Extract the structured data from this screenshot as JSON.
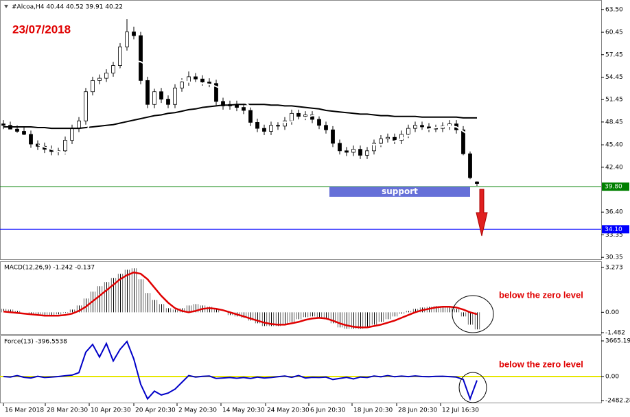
{
  "header": "#Alcoa,H4 40.44 40.52 39.91 40.22",
  "chart_data": [
    {
      "type": "candlestick",
      "annotation": "23/07/2018",
      "xlim": [
        -0.5,
        87.1
      ],
      "ylim": [
        30.0,
        64.4
      ],
      "yticks": [
        {
          "value": 63.5,
          "label": "63.50"
        },
        60.45,
        57.45,
        54.45,
        51.45,
        48.45,
        {
          "value": 45.4,
          "label": "45.40"
        },
        {
          "value": 42.4,
          "label": "42.40"
        },
        {
          "value": 36.4,
          "label": "36.40"
        },
        33.35,
        30.35
      ],
      "open": [
        48.2,
        48.0,
        47.5,
        47.2,
        46.8,
        45.5,
        45.2,
        44.8,
        44.5,
        44.6,
        46.0,
        47.6,
        48.6,
        52.5,
        54.0,
        54.3,
        55.0,
        56.0,
        58.5,
        60.5,
        60.0,
        54.0,
        50.8,
        52.5,
        51.5,
        50.8,
        53.0,
        53.8,
        54.5,
        54.2,
        53.8,
        53.6,
        51.2,
        50.6,
        50.8,
        50.4,
        50.0,
        48.4,
        47.6,
        47.2,
        48.0,
        47.9,
        48.6,
        49.6,
        49.2,
        49.4,
        48.8,
        48.0,
        47.4,
        45.6,
        44.6,
        44.4,
        44.8,
        44.0,
        44.6,
        45.6,
        46.2,
        46.4,
        46.0,
        46.8,
        47.6,
        48.0,
        47.8,
        47.6,
        47.6,
        47.9,
        48.2,
        47.4,
        44.2,
        40.44
      ],
      "high": [
        48.7,
        48.5,
        48.0,
        47.7,
        47.3,
        46.0,
        45.7,
        45.3,
        45.0,
        46.5,
        48.1,
        49.1,
        53.0,
        54.5,
        54.8,
        55.5,
        56.5,
        59.0,
        62.2,
        61.2,
        60.5,
        54.5,
        52.9,
        53.0,
        52.0,
        53.5,
        54.3,
        55.2,
        55.0,
        54.7,
        54.3,
        54.1,
        51.7,
        51.3,
        51.3,
        50.9,
        50.5,
        48.9,
        48.1,
        48.5,
        48.5,
        49.1,
        50.1,
        50.1,
        49.9,
        49.9,
        49.3,
        48.5,
        47.9,
        46.1,
        45.1,
        45.3,
        45.3,
        45.1,
        46.1,
        46.7,
        46.9,
        46.9,
        47.3,
        48.1,
        48.5,
        48.5,
        48.3,
        48.1,
        48.4,
        48.7,
        48.7,
        47.9,
        44.5,
        40.52
      ],
      "low": [
        47.5,
        47.5,
        47.0,
        46.7,
        45.0,
        44.7,
        44.3,
        44.0,
        44.0,
        44.1,
        45.5,
        47.1,
        48.1,
        52.0,
        53.5,
        53.8,
        54.5,
        55.5,
        58.0,
        59.5,
        53.5,
        50.3,
        50.3,
        51.0,
        50.3,
        50.3,
        52.5,
        53.3,
        53.7,
        53.3,
        53.1,
        50.7,
        50.1,
        50.1,
        49.9,
        49.5,
        47.9,
        47.1,
        46.7,
        46.7,
        47.4,
        47.4,
        48.1,
        48.7,
        48.7,
        48.3,
        47.5,
        46.9,
        45.1,
        44.1,
        43.9,
        43.9,
        43.5,
        43.5,
        44.1,
        45.1,
        45.7,
        45.5,
        45.5,
        46.3,
        47.1,
        47.3,
        47.1,
        47.1,
        47.1,
        47.4,
        46.9,
        44.0,
        40.8,
        39.91
      ],
      "close": [
        48.0,
        47.5,
        47.2,
        46.8,
        45.5,
        45.2,
        44.8,
        44.5,
        44.6,
        46.0,
        47.6,
        48.6,
        52.5,
        54.0,
        54.3,
        55.0,
        56.0,
        58.5,
        60.5,
        60.0,
        54.0,
        50.8,
        52.5,
        51.5,
        50.8,
        53.0,
        53.8,
        54.5,
        54.2,
        53.8,
        53.6,
        51.2,
        50.6,
        50.8,
        50.4,
        50.0,
        48.4,
        47.6,
        47.2,
        48.0,
        47.9,
        48.6,
        49.6,
        49.2,
        49.4,
        48.8,
        48.0,
        47.4,
        45.6,
        44.6,
        44.4,
        44.8,
        44.0,
        44.6,
        45.6,
        46.2,
        46.4,
        46.0,
        46.8,
        47.6,
        48.0,
        47.8,
        47.6,
        47.6,
        47.9,
        48.2,
        47.4,
        44.2,
        41.0,
        40.22
      ],
      "series": [
        {
          "color": "#000000",
          "values": [
            47.8,
            47.8,
            47.8,
            47.8,
            47.8,
            47.7,
            47.7,
            47.6,
            47.6,
            47.6,
            47.6,
            47.6,
            47.7,
            47.8,
            47.9,
            48.0,
            48.1,
            48.3,
            48.5,
            48.7,
            48.9,
            49.1,
            49.3,
            49.4,
            49.6,
            49.7,
            49.9,
            50.1,
            50.2,
            50.4,
            50.5,
            50.6,
            50.7,
            50.7,
            50.8,
            50.8,
            50.8,
            50.8,
            50.8,
            50.7,
            50.7,
            50.6,
            50.6,
            50.5,
            50.4,
            50.3,
            50.2,
            50.0,
            49.9,
            49.8,
            49.7,
            49.6,
            49.5,
            49.5,
            49.4,
            49.3,
            49.3,
            49.2,
            49.2,
            49.2,
            49.2,
            49.1,
            49.1,
            49.1,
            49.1,
            49.1,
            49.1,
            49.0,
            49.0,
            49.0
          ]
        },
        {
          "color": "#ffffff",
          "values": [
            null,
            null,
            null,
            null,
            null,
            45.4,
            45.1,
            44.8,
            44.5,
            44.3,
            44.5,
            45.5,
            47.0,
            49.0,
            51.0,
            52.8,
            54.3,
            55.5,
            56.3,
            56.7,
            56.5,
            56.0,
            55.5,
            55.0,
            54.6,
            54.3,
            54.0,
            53.8,
            53.7,
            53.6,
            53.5,
            53.2,
            52.8,
            52.3,
            51.8,
            51.2,
            50.5,
            49.8,
            49.2,
            48.8,
            48.5,
            48.4,
            48.5,
            48.7,
            49.0,
            49.3,
            49.3,
            49.0,
            48.5,
            47.8,
            47.2,
            46.6,
            46.0,
            45.6,
            45.4,
            45.4,
            45.6,
            45.9,
            46.2,
            46.6,
            47.0,
            47.3,
            47.5,
            47.7,
            47.8,
            47.9,
            47.8,
            47.2,
            46.6,
            46.2
          ]
        }
      ],
      "levels": [
        {
          "value": 39.8,
          "label": "39.80",
          "color": "#008000"
        },
        {
          "value": 34.1,
          "label": "34.10",
          "color": "#0000ff"
        }
      ],
      "support": {
        "label": "support",
        "low": 38.45,
        "high": 39.8,
        "from": 47.5,
        "to": 68
      }
    },
    {
      "type": "bar",
      "title": "MACD(12,26,9) -1.242 -0.137",
      "annotation": "below the zero level",
      "xlim": [
        -0.5,
        87.1
      ],
      "ylim": [
        -1.63,
        3.61
      ],
      "yticks": [
        3.273,
        {
          "value": 0,
          "label": "0.00"
        },
        -1.482
      ],
      "series": [
        {
          "kind": "bar",
          "color": "#000000",
          "values": [
            0.25,
            0.2,
            0.1,
            0.0,
            -0.1,
            -0.15,
            -0.2,
            -0.2,
            -0.15,
            -0.05,
            0.2,
            0.5,
            1.0,
            1.5,
            1.9,
            2.2,
            2.5,
            2.8,
            3.1,
            3.2,
            2.4,
            1.4,
            0.9,
            0.6,
            0.3,
            0.2,
            0.3,
            0.5,
            0.6,
            0.5,
            0.4,
            0.2,
            0.0,
            -0.2,
            -0.3,
            -0.4,
            -0.6,
            -0.8,
            -1.0,
            -1.0,
            -1.0,
            -0.9,
            -0.7,
            -0.5,
            -0.35,
            -0.3,
            -0.35,
            -0.5,
            -0.8,
            -1.1,
            -1.2,
            -1.2,
            -1.2,
            -1.1,
            -0.9,
            -0.7,
            -0.5,
            -0.3,
            -0.1,
            0.1,
            0.25,
            0.35,
            0.4,
            0.45,
            0.45,
            0.4,
            0.25,
            -0.3,
            -0.9,
            -1.242
          ]
        },
        {
          "kind": "line",
          "color": "#e00000",
          "values": [
            0.05,
            0.0,
            -0.05,
            -0.1,
            -0.15,
            -0.2,
            -0.25,
            -0.25,
            -0.25,
            -0.2,
            -0.1,
            0.1,
            0.4,
            0.8,
            1.2,
            1.6,
            2.0,
            2.4,
            2.7,
            2.9,
            2.8,
            2.4,
            1.8,
            1.2,
            0.7,
            0.3,
            0.1,
            0.0,
            0.1,
            0.25,
            0.3,
            0.25,
            0.15,
            0.0,
            -0.15,
            -0.3,
            -0.45,
            -0.6,
            -0.75,
            -0.85,
            -0.9,
            -0.9,
            -0.8,
            -0.7,
            -0.55,
            -0.45,
            -0.4,
            -0.45,
            -0.6,
            -0.8,
            -0.95,
            -1.05,
            -1.1,
            -1.1,
            -1.0,
            -0.9,
            -0.75,
            -0.6,
            -0.4,
            -0.2,
            0.0,
            0.15,
            0.25,
            0.35,
            0.4,
            0.4,
            0.35,
            0.2,
            0.0,
            -0.137
          ]
        }
      ]
    },
    {
      "type": "line",
      "title": "Force(13) -396.5538",
      "annotation": "below the zero level",
      "xlim": [
        -0.5,
        87.1
      ],
      "ylim": [
        -2680,
        4090
      ],
      "yticks": [
        3665.195,
        {
          "value": 0,
          "label": "0.00"
        },
        -2482.284
      ],
      "zero_color": "#e6e600",
      "xticks": [
        {
          "value": 0,
          "label": "16 Mar 2018"
        },
        {
          "value": 6.1,
          "label": "28 Mar 20:30"
        },
        {
          "value": 12.5,
          "label": "10 Apr 20:30"
        },
        {
          "value": 19,
          "label": "20 Apr 20:30"
        },
        {
          "value": 25.3,
          "label": "2 May 20:30"
        },
        {
          "value": 31.7,
          "label": "14 May 20:30"
        },
        {
          "value": 38.2,
          "label": "24 May 20:30"
        },
        {
          "value": 44.5,
          "label": "6 Jun 20:30"
        },
        {
          "value": 50.8,
          "label": "18 Jun 20:30"
        },
        {
          "value": 57.3,
          "label": "28 Jun 20:30"
        },
        {
          "value": 63.7,
          "label": "12 Jul 16:30"
        }
      ],
      "series": [
        {
          "color": "#0000c8",
          "values": [
            0,
            -50,
            100,
            -80,
            -150,
            20,
            -100,
            -60,
            0,
            80,
            150,
            400,
            2500,
            3300,
            2000,
            3400,
            1600,
            2800,
            3600,
            1800,
            -800,
            -2300,
            -1500,
            -1900,
            -1700,
            -1300,
            -600,
            100,
            -50,
            20,
            50,
            -200,
            -150,
            -100,
            -180,
            -100,
            -200,
            -60,
            -150,
            -100,
            -20,
            50,
            -80,
            100,
            -150,
            -80,
            -100,
            -60,
            -300,
            -200,
            -80,
            -250,
            -50,
            -100,
            50,
            -30,
            100,
            -20,
            40,
            -10,
            60,
            0,
            -20,
            20,
            30,
            -10,
            -60,
            -300,
            -2300,
            -396.5538
          ]
        }
      ]
    }
  ]
}
